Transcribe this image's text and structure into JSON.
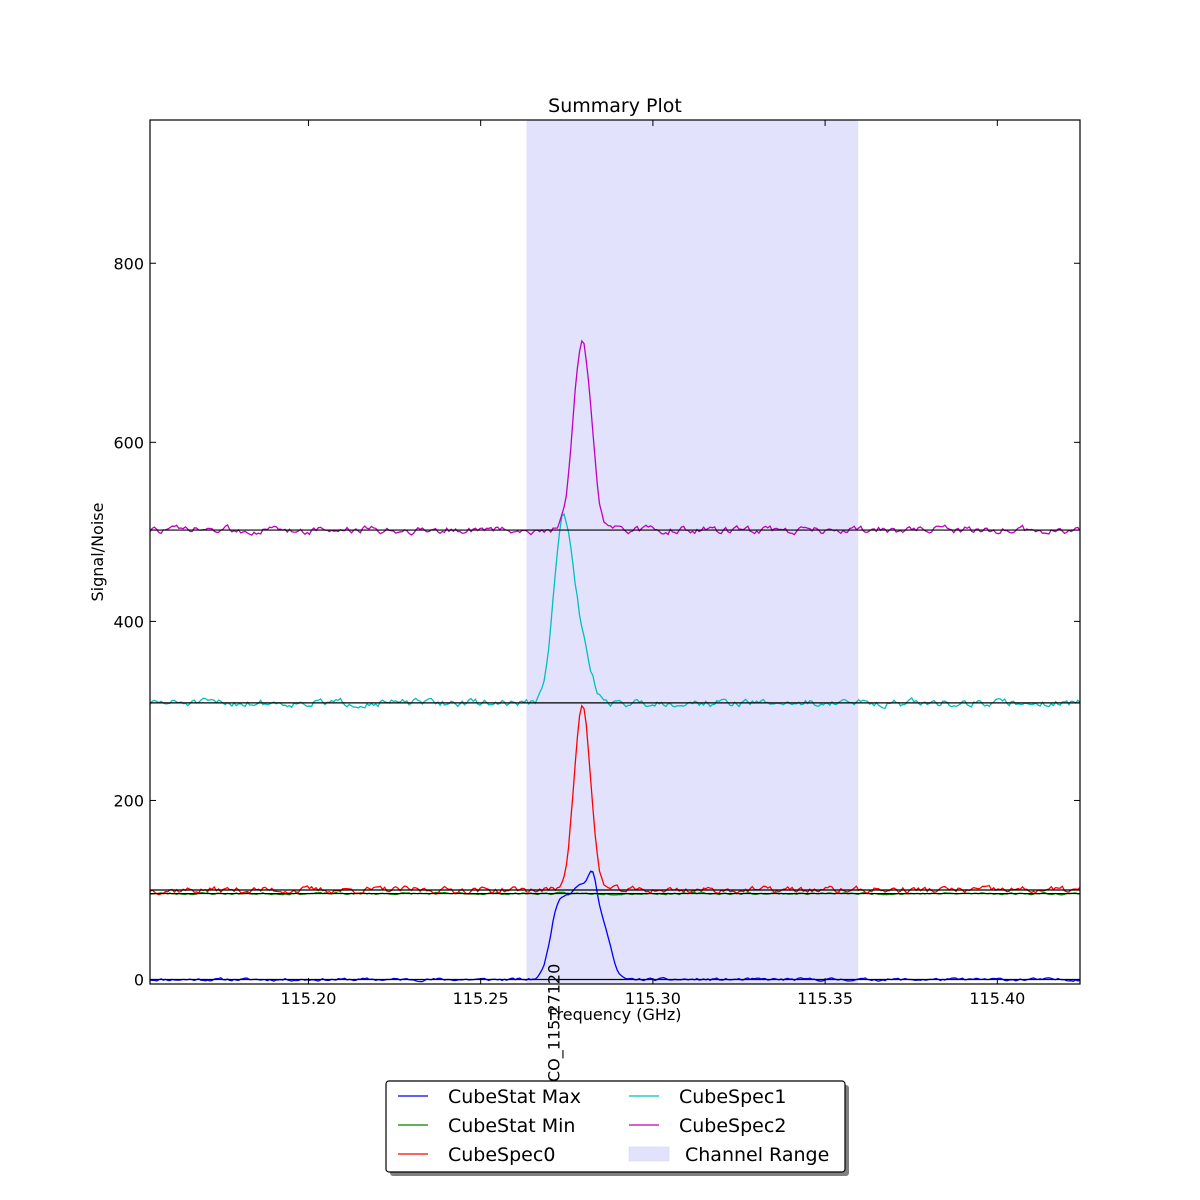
{
  "chart_data": {
    "type": "line",
    "title": "Summary Plot",
    "xlabel": "Frequency (GHz)",
    "ylabel": "Signal/Noise",
    "xlim": [
      115.154,
      115.424
    ],
    "ylim": [
      -5,
      960
    ],
    "x_ticks": [
      115.2,
      115.25,
      115.3,
      115.35,
      115.4
    ],
    "x_tick_labels": [
      "115.20",
      "115.25",
      "115.30",
      "115.35",
      "115.40"
    ],
    "y_ticks": [
      0,
      200,
      400,
      600,
      800
    ],
    "y_tick_labels": [
      "0",
      "200",
      "400",
      "600",
      "800"
    ],
    "grid": false,
    "legend_position": "below plot, centered",
    "channel_range": {
      "name": "Channel Range",
      "x0": 115.2633,
      "x1": 115.3596,
      "color": "#e2e2fc"
    },
    "line_marker": {
      "label": "CO_115.27120",
      "x": 115.2712
    },
    "baselines": [
      {
        "y": 0,
        "color": "#000000"
      },
      {
        "y": 96,
        "color": "#000000"
      },
      {
        "y": 100,
        "color": "#000000"
      },
      {
        "y": 309,
        "color": "#000000"
      },
      {
        "y": 502,
        "color": "#000000"
      }
    ],
    "series": [
      {
        "name": "CubeStat Max",
        "color": "#0000ff",
        "baseline": 0,
        "noise": 1.3,
        "seed": 11,
        "peaks": [
          {
            "x": 115.2712,
            "height": 18,
            "width": 0.0018
          },
          {
            "x": 115.274,
            "height": 83,
            "width": 0.0028
          },
          {
            "x": 115.279,
            "height": 82,
            "width": 0.0022
          },
          {
            "x": 115.2825,
            "height": 84,
            "width": 0.0016
          },
          {
            "x": 115.286,
            "height": 54,
            "width": 0.002
          }
        ]
      },
      {
        "name": "CubeStat Min",
        "color": "#008000",
        "baseline": 96,
        "noise": 0.9,
        "seed": 23,
        "peaks": []
      },
      {
        "name": "CubeSpec0",
        "color": "#ff0000",
        "baseline": 100,
        "noise": 3.2,
        "seed": 37,
        "peaks": [
          {
            "x": 115.2795,
            "height": 205,
            "width": 0.0024
          }
        ]
      },
      {
        "name": "CubeSpec1",
        "color": "#00bfbf",
        "baseline": 309,
        "noise": 3.5,
        "seed": 51,
        "peaks": [
          {
            "x": 115.2737,
            "height": 188,
            "width": 0.0026
          },
          {
            "x": 115.2785,
            "height": 70,
            "width": 0.003
          }
        ]
      },
      {
        "name": "CubeSpec2",
        "color": "#bf00bf",
        "baseline": 502,
        "noise": 3.6,
        "seed": 73,
        "peaks": [
          {
            "x": 115.2795,
            "height": 208,
            "width": 0.0026
          }
        ]
      }
    ]
  }
}
